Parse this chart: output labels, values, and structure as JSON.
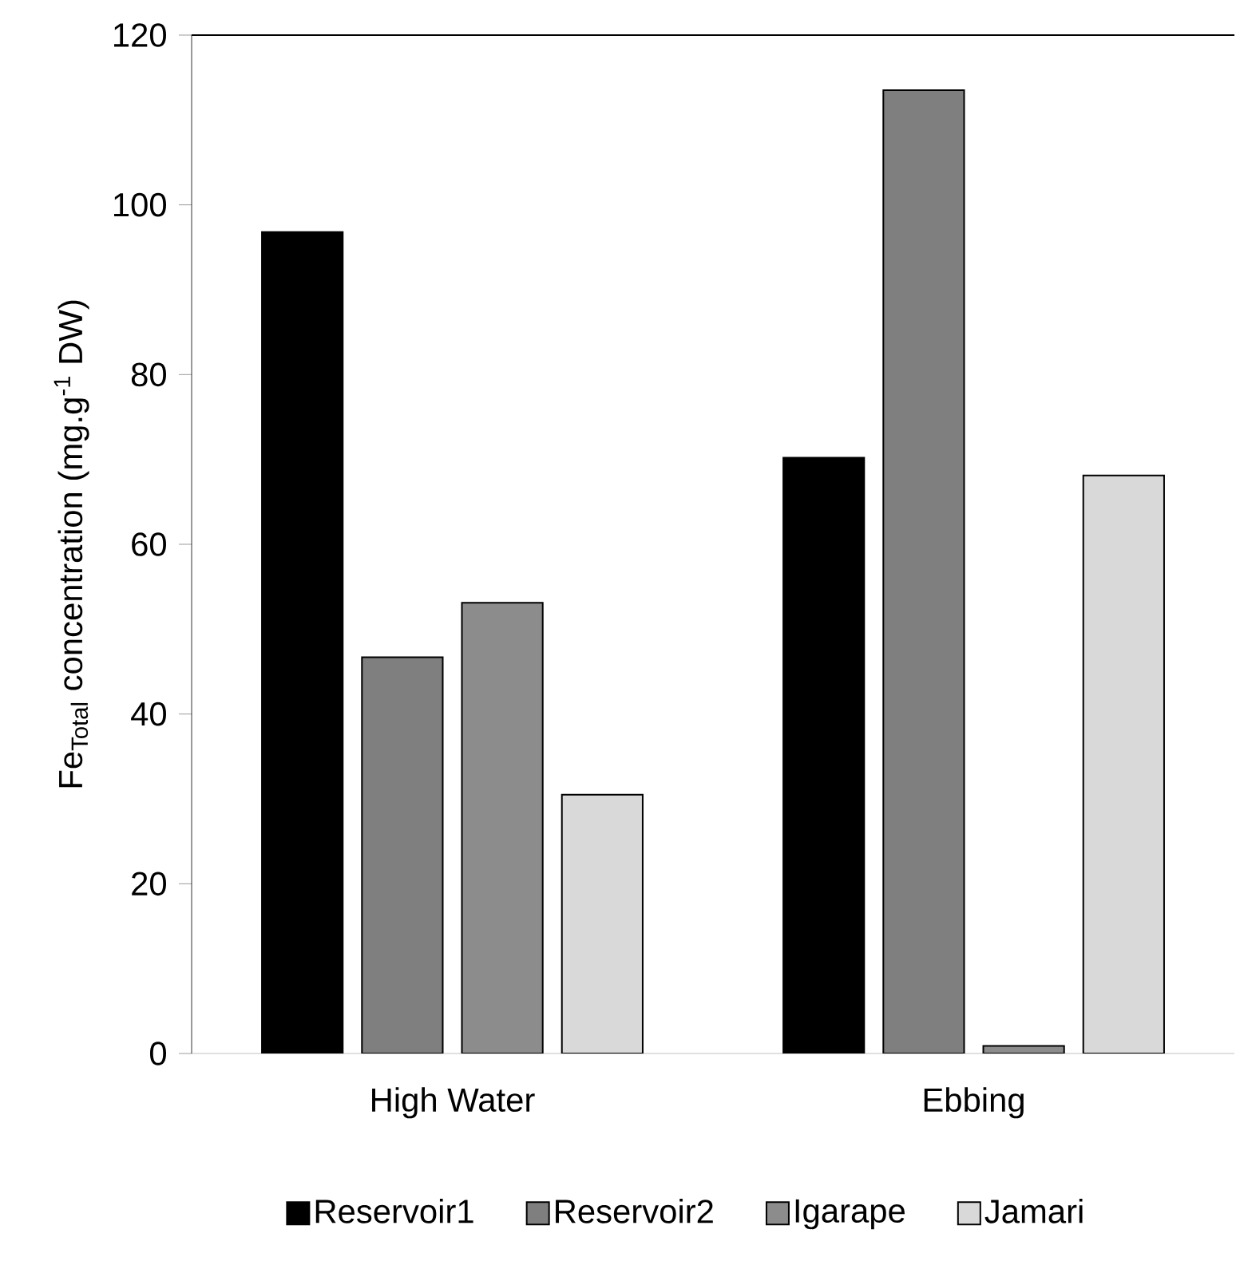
{
  "chart_data": {
    "type": "bar",
    "ylabel": "Fe$_{Total}$ concentration (mg.g$^{-1}$ DW)",
    "categories": [
      "High Water",
      "Ebbing"
    ],
    "series": [
      {
        "name": "Reservoir1",
        "color": "#000000",
        "values": [
          96.8,
          70.2
        ]
      },
      {
        "name": "Reservoir2",
        "color": "#7f7f7f",
        "values": [
          46.7,
          113.5
        ]
      },
      {
        "name": "Igarape",
        "color": "#8c8c8c",
        "values": [
          53.1,
          0.9
        ]
      },
      {
        "name": "Jamari",
        "color": "#d9d9d9",
        "values": [
          30.5,
          68.1
        ]
      }
    ],
    "ylim": [
      0,
      120
    ],
    "yticks": [
      0,
      20,
      40,
      60,
      80,
      100,
      120
    ],
    "grid": false,
    "legend": "bottom"
  }
}
